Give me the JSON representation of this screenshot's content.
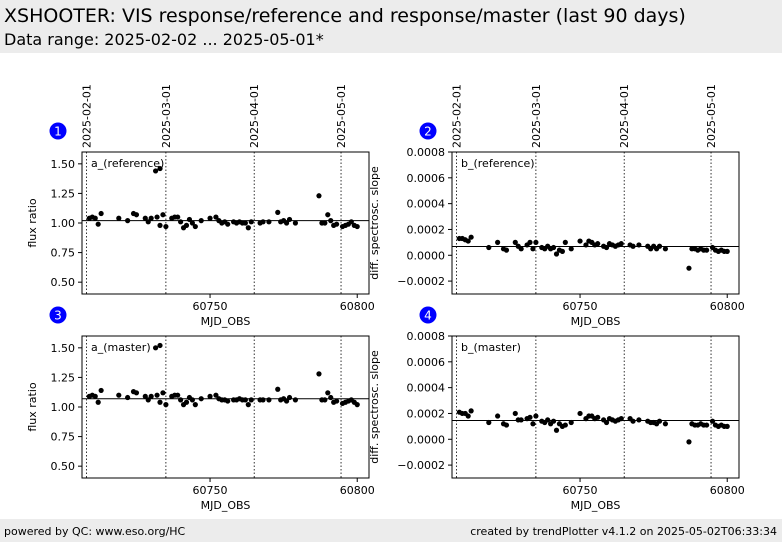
{
  "header": {
    "title": "XSHOOTER: VIS response/reference and response/master (last 90 days)",
    "subtitle": "Data range: 2025-02-02 ... 2025-05-01*"
  },
  "footer": {
    "left": "powered by QC: www.eso.org/HC",
    "right": "created by trendPlotter v4.1.2 on 2025-05-02T06:33:34"
  },
  "colors": {
    "marker": "#000000",
    "badge": "#0000ff",
    "header_bg": "#ececec"
  },
  "chart_data": [
    {
      "type": "scatter",
      "badge": "1",
      "label": "a_(reference)",
      "xlabel": "MJD_OBS",
      "ylabel": "flux ratio",
      "xlim": [
        60706.5,
        60804
      ],
      "ylim": [
        0.4,
        1.6
      ],
      "xticks": [
        60750,
        60800
      ],
      "yticks": [
        0.5,
        0.75,
        1.0,
        1.25,
        1.5
      ],
      "ytick_labels": [
        "0.50",
        "0.75",
        "1.00",
        "1.25",
        "1.50"
      ],
      "reference_line": 1.02,
      "date_markers": [
        {
          "x": 60708.0,
          "label": "2025-02-01"
        },
        {
          "x": 60735.0,
          "label": "2025-03-01"
        },
        {
          "x": 60765.0,
          "label": "2025-04-01"
        },
        {
          "x": 60794.5,
          "label": "2025-05-01"
        }
      ],
      "x": [
        60709,
        60710,
        60711,
        60712,
        60713,
        60719,
        60722,
        60724,
        60725,
        60728,
        60729,
        60730,
        60732,
        60733,
        60734,
        60735,
        60737,
        60738,
        60739,
        60740,
        60741,
        60742,
        60743,
        60744,
        60745,
        60747,
        60750,
        60752,
        60753,
        60754,
        60755,
        60756,
        60758,
        60759,
        60760,
        60761,
        60762,
        60763,
        60764,
        60767,
        60768,
        60770,
        60773,
        60774,
        60775,
        60776,
        60777,
        60779,
        60787,
        60788,
        60789,
        60790,
        60791,
        60792,
        60793,
        60795,
        60796,
        60797,
        60798,
        60799,
        60800
      ],
      "y": [
        1.04,
        1.05,
        1.04,
        0.99,
        1.08,
        1.04,
        1.02,
        1.08,
        1.07,
        1.04,
        1.01,
        1.04,
        1.05,
        0.98,
        1.07,
        0.97,
        1.04,
        1.05,
        1.05,
        1.01,
        0.96,
        0.98,
        1.03,
        1.0,
        0.97,
        1.02,
        1.04,
        1.05,
        1.02,
        1.0,
        1.01,
        0.99,
        1.01,
        1.0,
        1.01,
        1.0,
        1.0,
        0.96,
        1.01,
        1.0,
        1.01,
        1.01,
        1.09,
        1.01,
        1.02,
        1.0,
        1.03,
        1.0,
        1.23,
        1.0,
        1.0,
        1.07,
        1.02,
        0.98,
        0.99,
        0.97,
        0.98,
        0.99,
        1.01,
        0.98,
        0.97
      ],
      "extra_points": {
        "x": [
          60731.5,
          60733.0
        ],
        "y": [
          1.44,
          1.46
        ]
      }
    },
    {
      "type": "scatter",
      "badge": "2",
      "label": "b_(reference)",
      "xlabel": "MJD_OBS",
      "ylabel": "diff. spectrosc. slope",
      "xlim": [
        60706.5,
        60804
      ],
      "ylim": [
        -0.0003,
        0.0008
      ],
      "xticks": [
        60750,
        60800
      ],
      "yticks": [
        -0.0002,
        0.0,
        0.0002,
        0.0004,
        0.0006,
        0.0008
      ],
      "ytick_labels": [
        "−0.0002",
        "0.0000",
        "0.0002",
        "0.0004",
        "0.0006",
        "0.0008"
      ],
      "reference_line": 6.8e-05,
      "date_markers": [
        {
          "x": 60708.0,
          "label": "2025-02-01"
        },
        {
          "x": 60735.0,
          "label": "2025-03-01"
        },
        {
          "x": 60765.0,
          "label": "2025-04-01"
        },
        {
          "x": 60794.5,
          "label": "2025-05-01"
        }
      ],
      "x": [
        60709,
        60710,
        60711,
        60712,
        60713,
        60719,
        60722,
        60724,
        60725,
        60728,
        60729,
        60730,
        60732,
        60733,
        60734,
        60735,
        60737,
        60738,
        60739,
        60740,
        60741,
        60742,
        60743,
        60744,
        60745,
        60747,
        60750,
        60752,
        60753,
        60754,
        60755,
        60756,
        60758,
        60759,
        60760,
        60761,
        60762,
        60763,
        60764,
        60767,
        60768,
        60770,
        60773,
        60774,
        60775,
        60776,
        60777,
        60779,
        60787,
        60788,
        60789,
        60790,
        60791,
        60792,
        60793,
        60795,
        60796,
        60797,
        60798,
        60799,
        60800
      ],
      "y": [
        0.00013,
        0.00013,
        0.00012,
        0.00011,
        0.00014,
        6e-05,
        0.0001,
        5e-05,
        4e-05,
        0.0001,
        7e-05,
        5e-05,
        8e-05,
        0.0001,
        5e-05,
        0.0001,
        6e-05,
        5e-05,
        7e-05,
        5e-05,
        6e-05,
        1e-05,
        4e-05,
        3e-05,
        0.0001,
        5e-05,
        0.00011,
        8e-05,
        0.00011,
        0.0001,
        8e-05,
        9e-05,
        7e-05,
        6e-05,
        9e-05,
        8e-05,
        7e-05,
        8e-05,
        9e-05,
        8e-05,
        7e-05,
        8e-05,
        7e-05,
        5e-05,
        7e-05,
        5e-05,
        7e-05,
        5e-05,
        -0.0001,
        5e-05,
        5e-05,
        4e-05,
        5e-05,
        4e-05,
        4e-05,
        6e-05,
        4e-05,
        3e-05,
        4e-05,
        3e-05,
        3e-05
      ],
      "extra_points": {
        "x": [],
        "y": []
      }
    },
    {
      "type": "scatter",
      "badge": "3",
      "label": "a_(master)",
      "xlabel": "MJD_OBS",
      "ylabel": "flux ratio",
      "xlim": [
        60706.5,
        60804
      ],
      "ylim": [
        0.4,
        1.6
      ],
      "xticks": [
        60750,
        60800
      ],
      "yticks": [
        0.5,
        0.75,
        1.0,
        1.25,
        1.5
      ],
      "ytick_labels": [
        "0.50",
        "0.75",
        "1.00",
        "1.25",
        "1.50"
      ],
      "reference_line": 1.07,
      "date_markers": [
        {
          "x": 60708.0,
          "label": "2025-02-01"
        },
        {
          "x": 60735.0,
          "label": "2025-03-01"
        },
        {
          "x": 60765.0,
          "label": "2025-04-01"
        },
        {
          "x": 60794.5,
          "label": "2025-05-01"
        }
      ],
      "x": [
        60709,
        60710,
        60711,
        60712,
        60713,
        60719,
        60722,
        60724,
        60725,
        60728,
        60729,
        60730,
        60732,
        60733,
        60734,
        60735,
        60737,
        60738,
        60739,
        60740,
        60741,
        60742,
        60743,
        60744,
        60745,
        60747,
        60750,
        60752,
        60753,
        60754,
        60755,
        60756,
        60758,
        60759,
        60760,
        60761,
        60762,
        60763,
        60764,
        60767,
        60768,
        60770,
        60773,
        60774,
        60775,
        60776,
        60777,
        60779,
        60787,
        60788,
        60789,
        60790,
        60791,
        60792,
        60793,
        60795,
        60796,
        60797,
        60798,
        60799,
        60800
      ],
      "y": [
        1.09,
        1.1,
        1.09,
        1.04,
        1.14,
        1.1,
        1.08,
        1.13,
        1.12,
        1.09,
        1.06,
        1.09,
        1.1,
        1.04,
        1.12,
        1.02,
        1.09,
        1.1,
        1.1,
        1.06,
        1.02,
        1.04,
        1.08,
        1.06,
        1.02,
        1.07,
        1.09,
        1.1,
        1.07,
        1.06,
        1.06,
        1.05,
        1.06,
        1.06,
        1.07,
        1.06,
        1.06,
        1.02,
        1.06,
        1.06,
        1.06,
        1.06,
        1.15,
        1.06,
        1.07,
        1.05,
        1.08,
        1.06,
        1.28,
        1.06,
        1.06,
        1.12,
        1.08,
        1.04,
        1.05,
        1.03,
        1.04,
        1.05,
        1.06,
        1.04,
        1.02
      ],
      "extra_points": {
        "x": [
          60731.5,
          60733.0
        ],
        "y": [
          1.5,
          1.52
        ]
      }
    },
    {
      "type": "scatter",
      "badge": "4",
      "label": "b_(master)",
      "xlabel": "MJD_OBS",
      "ylabel": "diff. spectrosc. slope",
      "xlim": [
        60706.5,
        60804
      ],
      "ylim": [
        -0.0003,
        0.0008
      ],
      "xticks": [
        60750,
        60800
      ],
      "yticks": [
        -0.0002,
        0.0,
        0.0002,
        0.0004,
        0.0006,
        0.0008
      ],
      "ytick_labels": [
        "−0.0002",
        "0.0000",
        "0.0002",
        "0.0004",
        "0.0006",
        "0.0008"
      ],
      "reference_line": 0.000145,
      "date_markers": [
        {
          "x": 60708.0,
          "label": "2025-02-01"
        },
        {
          "x": 60735.0,
          "label": "2025-03-01"
        },
        {
          "x": 60765.0,
          "label": "2025-04-01"
        },
        {
          "x": 60794.5,
          "label": "2025-05-01"
        }
      ],
      "x": [
        60709,
        60710,
        60711,
        60712,
        60713,
        60719,
        60722,
        60724,
        60725,
        60728,
        60729,
        60730,
        60732,
        60733,
        60734,
        60735,
        60737,
        60738,
        60739,
        60740,
        60741,
        60742,
        60743,
        60744,
        60745,
        60747,
        60750,
        60752,
        60753,
        60754,
        60755,
        60756,
        60758,
        60759,
        60760,
        60761,
        60762,
        60763,
        60764,
        60767,
        60768,
        60770,
        60773,
        60774,
        60775,
        60776,
        60777,
        60779,
        60787,
        60788,
        60789,
        60790,
        60791,
        60792,
        60793,
        60795,
        60796,
        60797,
        60798,
        60799,
        60800
      ],
      "y": [
        0.00021,
        0.0002,
        0.0002,
        0.00018,
        0.00022,
        0.00013,
        0.00018,
        0.00012,
        0.00011,
        0.0002,
        0.00015,
        0.00015,
        0.00016,
        0.00017,
        0.00012,
        0.00018,
        0.00014,
        0.00013,
        0.00015,
        0.00012,
        0.00014,
        7e-05,
        0.00012,
        0.0001,
        0.00011,
        0.00013,
        0.0002,
        0.00016,
        0.00018,
        0.00018,
        0.00016,
        0.00017,
        0.00015,
        0.00013,
        0.00016,
        0.00015,
        0.00014,
        0.00015,
        0.00016,
        0.00016,
        0.00014,
        0.00015,
        0.00014,
        0.00013,
        0.00013,
        0.00012,
        0.00014,
        0.00012,
        -2e-05,
        0.00012,
        0.00011,
        0.00011,
        0.00012,
        0.00011,
        0.00011,
        0.00014,
        0.00011,
        0.0001,
        0.00011,
        0.0001,
        0.0001
      ],
      "extra_points": {
        "x": [],
        "y": []
      }
    }
  ]
}
